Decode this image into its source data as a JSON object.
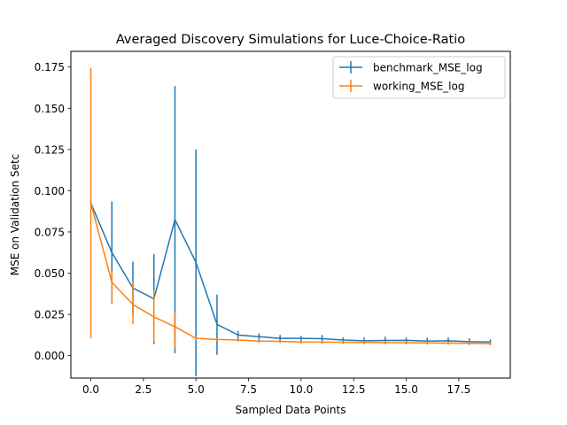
{
  "chart_data": {
    "type": "line",
    "title": "Averaged Discovery Simulations for Luce-Choice-Ratio",
    "xlabel": "Sampled Data Points",
    "ylabel": "MSE on Validation Setc",
    "xlim": [
      -0.95,
      19.95
    ],
    "ylim": [
      -0.0136,
      0.1845
    ],
    "xticks": [
      0,
      2.5,
      5,
      7.5,
      10,
      12.5,
      15,
      17.5
    ],
    "xtick_labels": [
      "0.0",
      "2.5",
      "5.0",
      "7.5",
      "10.0",
      "12.5",
      "15.0",
      "17.5"
    ],
    "yticks": [
      0,
      0.025,
      0.05,
      0.075,
      0.1,
      0.125,
      0.15,
      0.175
    ],
    "ytick_labels": [
      "0.000",
      "0.025",
      "0.050",
      "0.075",
      "0.100",
      "0.125",
      "0.150",
      "0.175"
    ],
    "grid": false,
    "legend_position": "upper right",
    "x": [
      0,
      1,
      2,
      3,
      4,
      5,
      6,
      7,
      8,
      9,
      10,
      11,
      12,
      13,
      14,
      15,
      16,
      17,
      18,
      19
    ],
    "series": [
      {
        "name": "benchmark_MSE_log",
        "color": "#1f77b4",
        "values": [
          0.0925,
          0.0625,
          0.041,
          0.0345,
          0.0825,
          0.0565,
          0.019,
          0.0125,
          0.0115,
          0.0105,
          0.0105,
          0.0103,
          0.0095,
          0.009,
          0.0092,
          0.0093,
          0.0088,
          0.009,
          0.0085,
          0.0083
        ],
        "err_low": [
          0.091,
          0.0315,
          0.025,
          0.007,
          0.0015,
          -0.0125,
          0.0005,
          0.0095,
          0.0085,
          0.008,
          0.0085,
          0.0075,
          0.0075,
          0.007,
          0.007,
          0.0075,
          0.0068,
          0.007,
          0.0065,
          0.0068
        ],
        "err_high": [
          0.094,
          0.0935,
          0.057,
          0.0615,
          0.1635,
          0.125,
          0.037,
          0.015,
          0.0135,
          0.0125,
          0.012,
          0.0125,
          0.011,
          0.011,
          0.0115,
          0.011,
          0.0108,
          0.011,
          0.0105,
          0.0098
        ]
      },
      {
        "name": "working_MSE_log",
        "color": "#ff7f0e",
        "values": [
          0.0925,
          0.0445,
          0.031,
          0.0235,
          0.0175,
          0.0105,
          0.0098,
          0.0095,
          0.0088,
          0.0087,
          0.0083,
          0.0082,
          0.0081,
          0.008,
          0.0079,
          0.0078,
          0.0077,
          0.0076,
          0.0075,
          0.0073
        ],
        "err_low": [
          0.0105,
          0.032,
          0.019,
          0.0085,
          0.0045,
          0.0095,
          0.0088,
          0.0085,
          0.0078,
          0.0076,
          0.0073,
          0.0072,
          0.0071,
          0.007,
          0.0069,
          0.0068,
          0.0067,
          0.0066,
          0.0065,
          0.0063
        ],
        "err_high": [
          0.1745,
          0.051,
          0.045,
          0.0395,
          0.0265,
          0.0115,
          0.0108,
          0.0105,
          0.0098,
          0.0097,
          0.0093,
          0.0092,
          0.0091,
          0.009,
          0.0089,
          0.0088,
          0.0087,
          0.0086,
          0.0085,
          0.0083
        ]
      }
    ]
  }
}
